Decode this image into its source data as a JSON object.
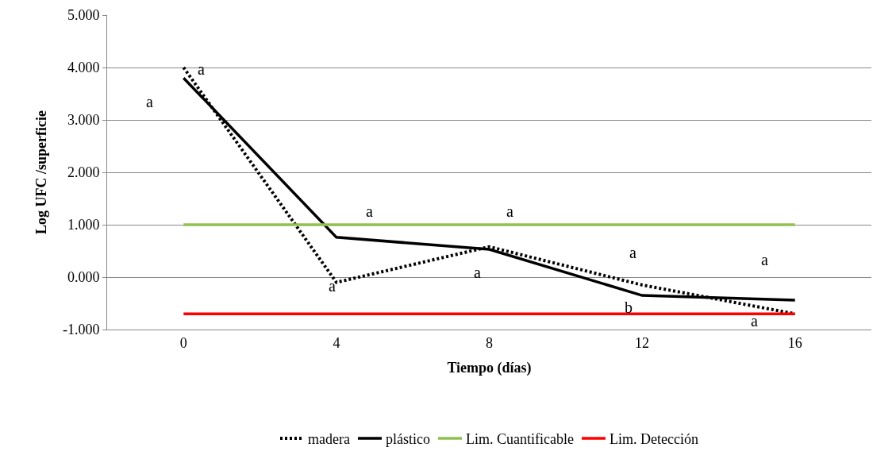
{
  "chart_data": {
    "type": "line",
    "xlabel": "Tiempo (días)",
    "ylabel": "Log UFC /superficie",
    "categories": [
      "0",
      "4",
      "8",
      "12",
      "16"
    ],
    "series": [
      {
        "name": "madera",
        "color": "#000000",
        "line_style": "dotted",
        "values": [
          4.0,
          -0.1,
          0.58,
          -0.15,
          -0.7
        ]
      },
      {
        "name": "plástico",
        "color": "#000000",
        "line_style": "solid",
        "values": [
          3.8,
          0.76,
          0.53,
          -0.35,
          -0.44
        ]
      },
      {
        "name": "Lim. Cuantificable",
        "color": "#92c050",
        "line_style": "solid",
        "values": [
          1.0,
          1.0,
          1.0,
          1.0,
          1.0
        ]
      },
      {
        "name": "Lim. Detección",
        "color": "#ff0000",
        "line_style": "solid",
        "values": [
          -0.7,
          -0.7,
          -0.7,
          -0.7,
          -0.7
        ]
      }
    ],
    "ylim": [
      -1,
      5
    ],
    "yticks": [
      {
        "value": -1,
        "label": "-1.000"
      },
      {
        "value": 0,
        "label": "0.000"
      },
      {
        "value": 1,
        "label": "1.000"
      },
      {
        "value": 2,
        "label": "2.000"
      },
      {
        "value": 3,
        "label": "3.000"
      },
      {
        "value": 4,
        "label": "4.000"
      },
      {
        "value": 5,
        "label": "5.000"
      }
    ],
    "grid": "y",
    "legend": "bottom",
    "marker": "none",
    "annotations": [
      "a",
      "a",
      "a",
      "a",
      "a",
      "a",
      "a",
      "b",
      "a",
      "a"
    ]
  }
}
